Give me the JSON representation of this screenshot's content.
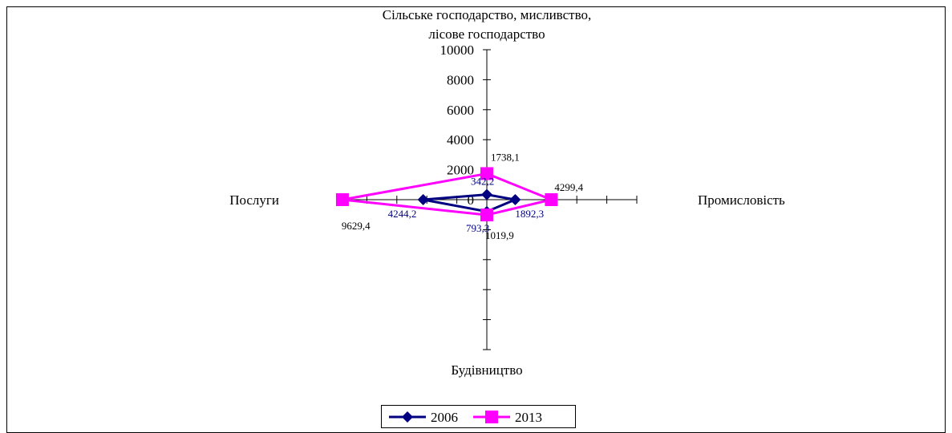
{
  "chart_data": {
    "type": "radar",
    "axes": [
      {
        "lines": [
          "Сільське господарство, мисливство,",
          "лісове господарство"
        ]
      },
      {
        "lines": [
          "Промисловість"
        ]
      },
      {
        "lines": [
          "Будівництво"
        ]
      },
      {
        "lines": [
          "Послуги"
        ]
      }
    ],
    "rlim": [
      0,
      10000
    ],
    "ticks": [
      "0",
      "2000",
      "4000",
      "6000",
      "8000",
      "10000"
    ],
    "series": [
      {
        "name": "2006",
        "color": "#000080",
        "marker": "diamond",
        "values": [
          342.2,
          1892.3,
          793.3,
          4244.2
        ],
        "labels": [
          "342,2",
          "1892,3",
          "793,3",
          "4244,2"
        ]
      },
      {
        "name": "2013",
        "color": "#FF00FF",
        "marker": "square",
        "values": [
          1738.1,
          4299.4,
          1019.9,
          9629.4
        ],
        "labels": [
          "1738,1",
          "4299,4",
          "1019,9",
          "9629,4"
        ]
      }
    ],
    "legend_position": "bottom"
  }
}
